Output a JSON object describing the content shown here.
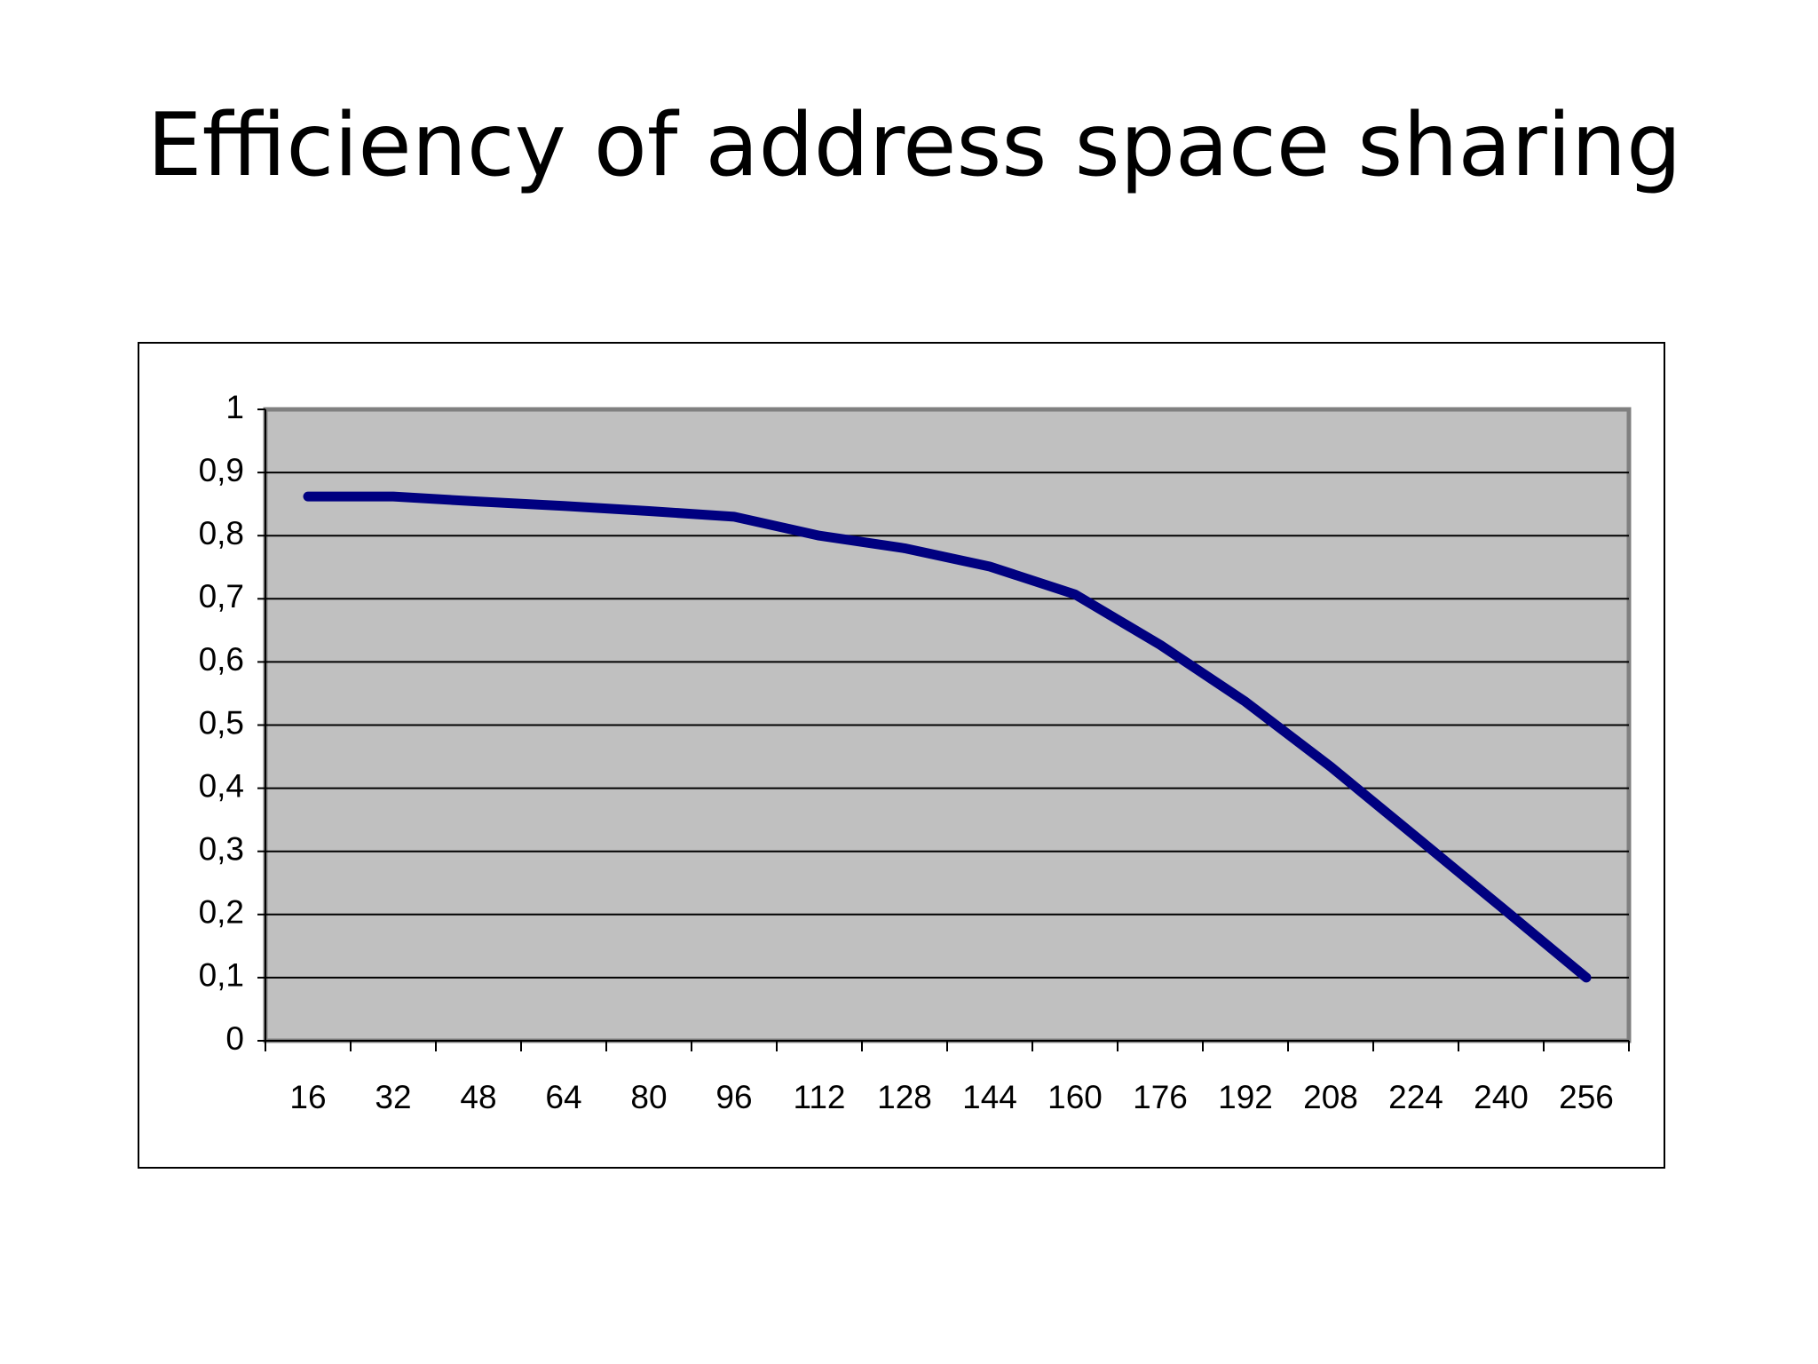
{
  "chart_data": {
    "type": "line",
    "title": "Efficiency of address space sharing",
    "categories": [
      "16",
      "32",
      "48",
      "64",
      "80",
      "96",
      "112",
      "128",
      "144",
      "160",
      "176",
      "192",
      "208",
      "224",
      "240",
      "256"
    ],
    "values": [
      0.862,
      0.862,
      0.854,
      0.847,
      0.839,
      0.83,
      0.8,
      0.78,
      0.751,
      0.707,
      0.627,
      0.537,
      0.434,
      0.323,
      0.212,
      0.1
    ],
    "color": "#000080",
    "ylim": [
      0,
      1
    ],
    "yticks": [
      0,
      {
        "value": 0.1,
        "label": "0,1"
      },
      {
        "value": 0.2,
        "label": "0,2"
      },
      {
        "value": 0.3,
        "label": "0,3"
      },
      {
        "value": 0.4,
        "label": "0,4"
      },
      {
        "value": 0.5,
        "label": "0,5"
      },
      {
        "value": 0.6,
        "label": "0,6"
      },
      {
        "value": 0.7,
        "label": "0,7"
      },
      {
        "value": 0.8,
        "label": "0,8"
      },
      {
        "value": 0.9,
        "label": "0,9"
      },
      1
    ],
    "grid": true
  }
}
